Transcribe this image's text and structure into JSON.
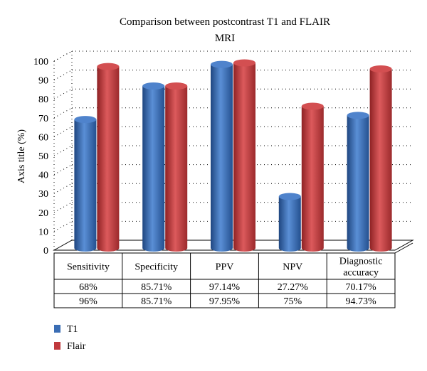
{
  "chart_data": {
    "type": "bar",
    "title_line1": "Comparison between postcontrast T1 and FLAIR",
    "title_line2": "MRI",
    "ylabel": "Axis title (%)",
    "xlabel": "",
    "ylim": [
      0,
      100
    ],
    "yticks": [
      0,
      10,
      20,
      30,
      40,
      50,
      60,
      70,
      80,
      90,
      100
    ],
    "grid": "dotted",
    "legend_position": "bottom-left",
    "categories": [
      "Sensitivity",
      "Specificity",
      "PPV",
      "NPV",
      "Diagnostic accuracy"
    ],
    "category_lines": [
      [
        "Sensitivity"
      ],
      [
        "Specificity"
      ],
      [
        "PPV"
      ],
      [
        "NPV"
      ],
      [
        "Diagnostic",
        "accuracy"
      ]
    ],
    "series": [
      {
        "name": "T1",
        "color": "#3a6db4",
        "values": [
          68,
          85.71,
          97.14,
          27.27,
          70.17
        ],
        "labels": [
          "68%",
          "85.71%",
          "97.14%",
          "27.27%",
          "70.17%"
        ]
      },
      {
        "name": "Flair",
        "color": "#c0393d",
        "values": [
          96,
          85.71,
          97.95,
          75,
          94.73
        ],
        "labels": [
          "96%",
          "85.71%",
          "97.95%",
          "75%",
          "94.73%"
        ]
      }
    ]
  }
}
